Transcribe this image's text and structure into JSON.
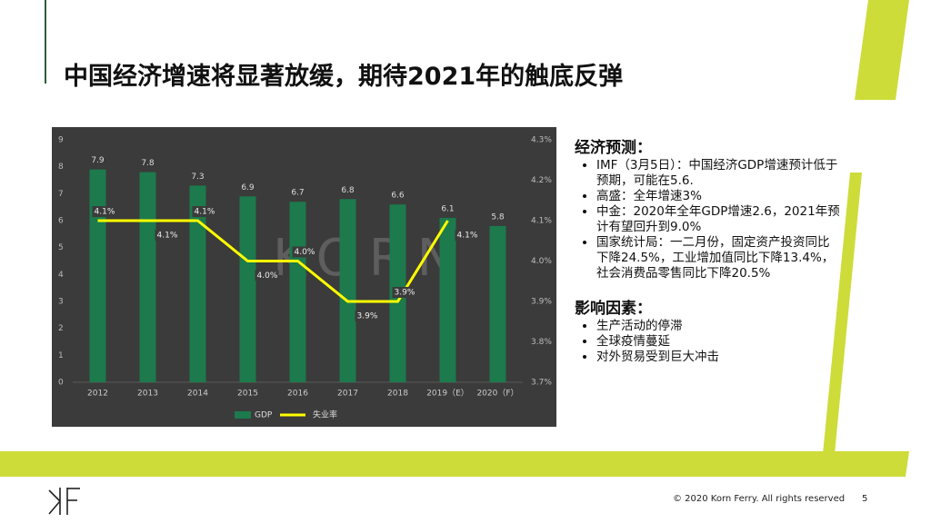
{
  "title": "中国经济增速将显著放缓，期待2021年的触底反弹",
  "chart_data": {
    "type": "bar",
    "categories": [
      "2012",
      "2013",
      "2014",
      "2015",
      "2016",
      "2017",
      "2018",
      "2019（E）",
      "2020（F）"
    ],
    "series": [
      {
        "name": "GDP",
        "color": "#1c7a4c",
        "values": [
          7.9,
          7.8,
          7.3,
          6.9,
          6.7,
          6.8,
          6.6,
          6.1,
          5.8
        ]
      },
      {
        "name": "失业率",
        "type": "line",
        "axis": "y2",
        "color": "#ffff00",
        "values": [
          4.1,
          4.1,
          4.1,
          4.0,
          4.0,
          3.9,
          3.9,
          4.1,
          null
        ],
        "value_labels": [
          "4.1%",
          "4.1%",
          "4.1%",
          "4.0%",
          "4.0%",
          "3.9%",
          "3.9%",
          "4.1%",
          null
        ]
      }
    ],
    "ylim": [
      0,
      9
    ],
    "yticks": [
      0,
      1,
      2,
      3,
      4,
      5,
      6,
      7,
      8,
      9
    ],
    "y2lim": [
      3.7,
      4.3
    ],
    "y2ticks": [
      {
        "value": 3.7,
        "label": "3.7%"
      },
      {
        "value": 3.8,
        "label": "3.8%"
      },
      {
        "value": 3.9,
        "label": "3.9%"
      },
      {
        "value": 4.0,
        "label": "4.0%"
      },
      {
        "value": 4.1,
        "label": "4.1%"
      },
      {
        "value": 4.2,
        "label": "4.2%"
      },
      {
        "value": 4.3,
        "label": "4.3%"
      }
    ],
    "legend": "bottom",
    "watermark": "KORN"
  },
  "panel": {
    "sections": [
      {
        "heading": "经济预测：",
        "items": [
          "IMF（3月5日）：中国经济GDP增速预计低于预期，可能在5.6.",
          "高盛：全年增速3%",
          "中金：2020年全年GDP增速2.6，2021年预计有望回升到9.0%",
          "国家统计局：一二月份，固定资产投资同比下降24.5%，工业增加值同比下降13.4%，社会消费品零售同比下降20.5%"
        ]
      },
      {
        "heading": "影响因素：",
        "items": [
          "生产活动的停滞",
          "全球疫情蔓延",
          "对外贸易受到巨大冲击"
        ]
      }
    ]
  },
  "footer": {
    "copyright": "© 2020 Korn Ferry. All rights reserved",
    "page": "5"
  }
}
